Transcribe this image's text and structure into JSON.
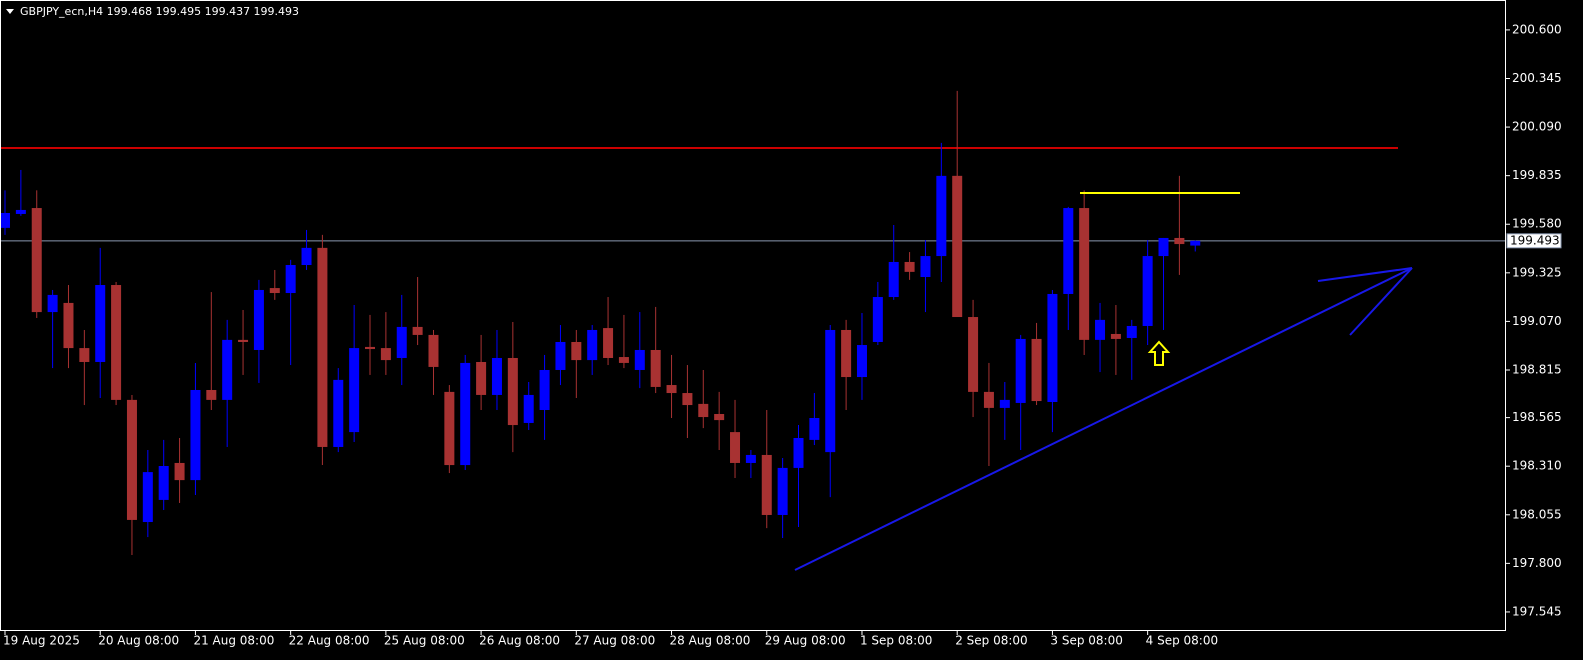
{
  "chart_data": {
    "type": "candlestick",
    "title": "GBPJPY_ecn,H4  199.468 199.495 199.437 199.493",
    "categories": [
      "19 Aug 2025",
      null,
      null,
      null,
      null,
      null,
      "20 Aug 08:00",
      null,
      null,
      null,
      null,
      null,
      "21 Aug 08:00",
      null,
      null,
      null,
      null,
      null,
      "22 Aug 08:00",
      null,
      null,
      null,
      null,
      null,
      "25 Aug 08:00",
      null,
      null,
      null,
      null,
      null,
      "26 Aug 08:00",
      null,
      null,
      null,
      null,
      null,
      "27 Aug 08:00",
      null,
      null,
      null,
      null,
      null,
      "28 Aug 08:00",
      null,
      null,
      null,
      null,
      null,
      "29 Aug 08:00",
      null,
      null,
      null,
      null,
      null,
      "1 Sep 08:00",
      null,
      null,
      null,
      null,
      null,
      "2 Sep 08:00",
      null,
      null,
      null,
      null,
      null,
      "3 Sep 08:00",
      null,
      null,
      null,
      null,
      null,
      "4 Sep 08:00",
      null,
      null,
      null
    ],
    "open": [
      199.561,
      199.634,
      199.665,
      199.119,
      199.167,
      198.93,
      198.857,
      199.261,
      198.658,
      198.017,
      198.133,
      198.327,
      198.237,
      198.71,
      198.658,
      198.973,
      198.92,
      199.245,
      199.219,
      199.366,
      199.456,
      198.411,
      198.489,
      198.936,
      198.93,
      198.878,
      199.041,
      198.999,
      198.7,
      198.316,
      198.857,
      198.684,
      198.878,
      198.537,
      198.605,
      198.815,
      198.962,
      198.867,
      199.035,
      198.883,
      198.815,
      198.92,
      198.736,
      198.694,
      198.637,
      198.584,
      198.489,
      198.327,
      198.369,
      198.054,
      198.301,
      198.448,
      198.384,
      199.025,
      198.778,
      198.962,
      199.198,
      199.382,
      199.303,
      199.413,
      199.834,
      199.093,
      198.7,
      198.616,
      198.642,
      198.978,
      198.647,
      199.214,
      199.665,
      198.973,
      199.004,
      198.983,
      199.046,
      199.413,
      199.508,
      199.468
    ],
    "high": [
      199.758,
      199.865,
      199.758,
      199.235,
      199.261,
      199.025,
      199.456,
      199.277,
      198.684,
      198.395,
      198.448,
      198.458,
      198.852,
      199.224,
      199.078,
      199.13,
      199.288,
      199.34,
      199.393,
      199.55,
      199.524,
      198.825,
      199.156,
      199.104,
      199.119,
      199.209,
      199.303,
      199.025,
      198.736,
      198.894,
      198.999,
      199.025,
      199.067,
      198.752,
      198.894,
      199.051,
      199.025,
      199.051,
      199.198,
      199.104,
      199.119,
      199.146,
      198.894,
      198.841,
      198.815,
      198.7,
      198.658,
      198.395,
      198.605,
      198.353,
      198.526,
      198.694,
      199.051,
      199.078,
      199.114,
      199.277,
      199.576,
      199.434,
      199.497,
      200.007,
      200.28,
      199.183,
      198.852,
      198.752,
      198.999,
      199.062,
      199.235,
      199.671,
      199.758,
      199.167,
      199.156,
      199.078,
      199.497,
      199.508,
      199.834,
      199.495
    ],
    "low": [
      199.524,
      199.624,
      199.088,
      198.825,
      198.825,
      198.631,
      198.668,
      198.631,
      197.844,
      197.938,
      198.08,
      198.117,
      198.159,
      198.605,
      198.411,
      198.789,
      198.747,
      199.183,
      198.841,
      199.34,
      198.316,
      198.384,
      198.437,
      198.789,
      198.789,
      198.736,
      198.946,
      198.684,
      198.274,
      198.29,
      198.605,
      198.605,
      198.384,
      198.5,
      198.448,
      198.736,
      198.668,
      198.789,
      198.841,
      198.825,
      198.72,
      198.694,
      198.563,
      198.458,
      198.51,
      198.395,
      198.248,
      198.248,
      197.985,
      197.933,
      197.991,
      198.421,
      198.148,
      198.605,
      198.658,
      198.946,
      199.183,
      199.288,
      199.119,
      199.277,
      199.093,
      198.568,
      198.311,
      198.448,
      198.395,
      198.631,
      198.489,
      199.025,
      198.894,
      198.804,
      198.789,
      198.763,
      198.946,
      199.025,
      199.314,
      199.437
    ],
    "close": [
      199.639,
      199.655,
      199.119,
      199.209,
      198.93,
      198.857,
      199.261,
      198.658,
      198.028,
      198.279,
      198.311,
      198.237,
      198.71,
      198.658,
      198.973,
      198.962,
      199.235,
      199.219,
      199.366,
      199.456,
      198.411,
      198.763,
      198.93,
      198.925,
      198.867,
      199.041,
      198.999,
      198.831,
      198.316,
      198.852,
      198.684,
      198.878,
      198.526,
      198.684,
      198.815,
      198.962,
      198.867,
      199.025,
      198.878,
      198.852,
      198.92,
      198.726,
      198.694,
      198.631,
      198.568,
      198.552,
      198.327,
      198.369,
      198.054,
      198.301,
      198.458,
      198.563,
      199.025,
      198.778,
      198.946,
      199.198,
      199.382,
      199.33,
      199.413,
      199.834,
      199.093,
      198.7,
      198.616,
      198.658,
      198.978,
      198.652,
      199.214,
      199.665,
      198.973,
      199.078,
      198.978,
      199.046,
      199.413,
      199.508,
      199.476,
      199.493
    ],
    "up_color": "#0000ff",
    "down_color": "#a83232",
    "ylim": [
      197.445,
      200.757
    ],
    "yticks": [
      {
        "value": 200.6,
        "label": "200.600"
      },
      200.345,
      {
        "value": 200.09,
        "label": "200.090"
      },
      199.835,
      {
        "value": 199.58,
        "label": "199.580"
      },
      199.325,
      {
        "value": 199.07,
        "label": "199.070"
      },
      198.815,
      198.565,
      {
        "value": 198.31,
        "label": "198.310"
      },
      198.055,
      {
        "value": 197.8,
        "label": "197.800"
      },
      197.545
    ],
    "current_price": 199.493,
    "levels": [
      {
        "value": 199.98,
        "color": "#cc0000"
      }
    ]
  }
}
